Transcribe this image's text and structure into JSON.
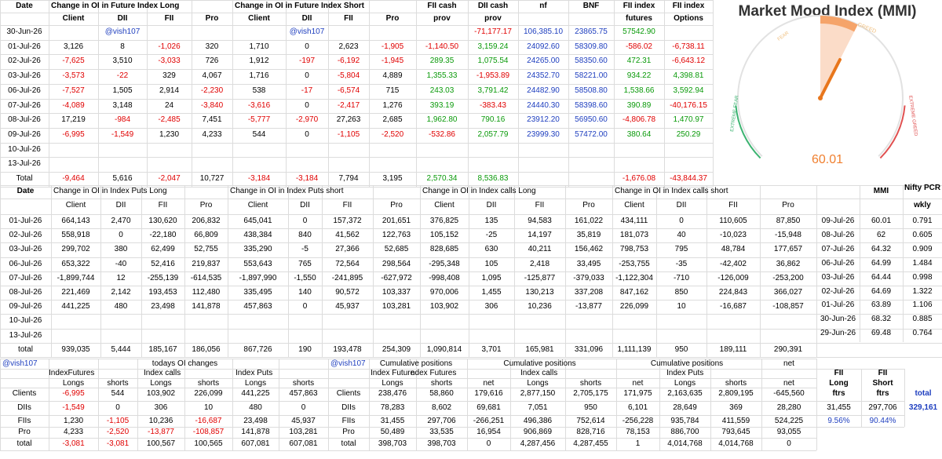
{
  "future_oi": {
    "header_row1": [
      "Date",
      "Change in OI in Future Index Long",
      null,
      null,
      null,
      "Change in OI in Future Index Short",
      null,
      null,
      null,
      "FII cash",
      "DII cash",
      "nf",
      "BNF",
      "FII index",
      "FII index"
    ],
    "header_row2": [
      null,
      "Client",
      "DII",
      "FII",
      "Pro",
      "Client",
      "DII",
      "FII",
      "Pro",
      "prov",
      "prov",
      null,
      null,
      "futures",
      "Options"
    ],
    "rows": [
      [
        "30-Jun-26",
        null,
        "@vish107",
        null,
        null,
        null,
        "@vish107",
        null,
        null,
        null,
        "-71,177.17",
        "106,385.10",
        "23865.75",
        "57542.90"
      ],
      [
        "01-Jul-26",
        "3,126",
        "8",
        "-1,026",
        "320",
        "1,710",
        "0",
        "2,623",
        "-1,905",
        "-1,140.50",
        "3,159.24",
        "24092.60",
        "58309.80",
        "-586.02",
        "-6,738.11"
      ],
      [
        "02-Jul-26",
        "-7,625",
        "3,510",
        "-3,033",
        "726",
        "1,912",
        "-197",
        "-6,192",
        "-1,945",
        "289.35",
        "1,075.54",
        "24265.00",
        "58350.60",
        "472.31",
        "-6,643.12"
      ],
      [
        "03-Jul-26",
        "-3,573",
        "-22",
        "329",
        "4,067",
        "1,716",
        "0",
        "-5,804",
        "4,889",
        "1,355.33",
        "-1,953.89",
        "24352.70",
        "58221.00",
        "934.22",
        "4,398.81"
      ],
      [
        "06-Jul-26",
        "-7,527",
        "1,505",
        "2,914",
        "-2,230",
        "538",
        "-17",
        "-6,574",
        "715",
        "243.03",
        "3,791.42",
        "24482.90",
        "58508.80",
        "1,538.66",
        "3,592.94"
      ],
      [
        "07-Jul-26",
        "-4,089",
        "3,148",
        "24",
        "-3,840",
        "-3,616",
        "0",
        "-2,417",
        "1,276",
        "393.19",
        "-383.43",
        "24440.30",
        "58398.60",
        "390.89",
        "-40,176.15"
      ],
      [
        "08-Jul-26",
        "17,219",
        "-984",
        "-2,485",
        "7,451",
        "-5,777",
        "-2,970",
        "27,263",
        "2,685",
        "1,962.80",
        "790.16",
        "23912.20",
        "56950.60",
        "-4,806.78",
        "1,470.97"
      ],
      [
        "09-Jul-26",
        "-6,995",
        "-1,549",
        "1,230",
        "4,233",
        "544",
        "0",
        "-1,105",
        "-2,520",
        "-532.86",
        "2,057.79",
        "23999.30",
        "57472.00",
        "380.64",
        "250.29"
      ],
      [
        "10-Jul-26"
      ],
      [
        "13-Jul-26"
      ],
      [
        "Total",
        "-9,464",
        "5,616",
        "-2,047",
        "10,727",
        "-3,184",
        "-3,184",
        "7,794",
        "3,195",
        "2,570.34",
        "8,536.83",
        null,
        null,
        "-1,676.08",
        "-43,844.37"
      ]
    ]
  },
  "mmi_gauge": {
    "title": "Market Mood Index (MMI)",
    "fear": "FEAR",
    "greed": "GREED",
    "extreme_fear": "EXTREME FEAR",
    "extreme_greed": "EXTREME GREED",
    "value": "60.01"
  },
  "options_oi": {
    "header_row1": [
      "Date",
      "Change in OI in Index Puts Long",
      null,
      null,
      null,
      "Change in OI in Index Puts short",
      null,
      null,
      null,
      "Change in OI in Index calls Long",
      null,
      null,
      null,
      "Change in OI in Index calls short"
    ],
    "header_row2": [
      null,
      "Client",
      "DII",
      "FII",
      "Pro",
      "Client",
      "DII",
      "FII",
      "Pro",
      "Client",
      "DII",
      "FII",
      "Pro",
      "Client",
      "DII",
      "FII",
      "Pro"
    ],
    "rows": [
      [
        "01-Jul-26",
        "664,143",
        "2,470",
        "130,620",
        "206,832",
        "645,041",
        "0",
        "157,372",
        "201,651",
        "376,825",
        "135",
        "94,583",
        "161,022",
        "434,111",
        "0",
        "110,605",
        "87,850"
      ],
      [
        "02-Jul-26",
        "558,918",
        "0",
        "-22,180",
        "66,809",
        "438,384",
        "840",
        "41,562",
        "122,763",
        "105,152",
        "-25",
        "14,197",
        "35,819",
        "181,073",
        "40",
        "-10,023",
        "-15,948"
      ],
      [
        "03-Jul-26",
        "299,702",
        "380",
        "62,499",
        "52,755",
        "335,290",
        "-5",
        "27,366",
        "52,685",
        "828,685",
        "630",
        "40,211",
        "156,462",
        "798,753",
        "795",
        "48,784",
        "177,657"
      ],
      [
        "06-Jul-26",
        "653,322",
        "-40",
        "52,416",
        "219,837",
        "553,643",
        "765",
        "72,564",
        "298,564",
        "-295,348",
        "105",
        "2,418",
        "33,495",
        "-253,755",
        "-35",
        "-42,402",
        "36,862"
      ],
      [
        "07-Jul-26",
        "-1,899,744",
        "12",
        "-255,139",
        "-614,535",
        "-1,897,990",
        "-1,550",
        "-241,895",
        "-627,972",
        "-998,408",
        "1,095",
        "-125,877",
        "-379,033",
        "-1,122,304",
        "-710",
        "-126,009",
        "-253,200"
      ],
      [
        "08-Jul-26",
        "221,469",
        "2,142",
        "193,453",
        "112,480",
        "335,495",
        "140",
        "90,572",
        "103,337",
        "970,006",
        "1,455",
        "130,213",
        "337,208",
        "847,162",
        "850",
        "224,843",
        "366,027"
      ],
      [
        "09-Jul-26",
        "441,225",
        "480",
        "23,498",
        "141,878",
        "457,863",
        "0",
        "45,937",
        "103,281",
        "103,902",
        "306",
        "10,236",
        "-13,877",
        "226,099",
        "10",
        "-16,687",
        "-108,857"
      ],
      [
        "10-Jul-26"
      ],
      [
        "13-Jul-26"
      ],
      [
        "total",
        "939,035",
        "5,444",
        "185,167",
        "186,056",
        "867,726",
        "190",
        "193,478",
        "254,309",
        "1,090,814",
        "3,701",
        "165,981",
        "331,096",
        "1,111,139",
        "950",
        "189,111",
        "290,391"
      ]
    ]
  },
  "mmi_table": {
    "header": [
      "MMI",
      "Nifty PCR"
    ],
    "subheader": "wkly",
    "rows": [
      [
        "09-Jul-26",
        "60.01",
        "0.791"
      ],
      [
        "08-Jul-26",
        "62",
        "0.605"
      ],
      [
        "07-Jul-26",
        "64.32",
        "0.909"
      ],
      [
        "06-Jul-26",
        "64.99",
        "1.484"
      ],
      [
        "03-Jul-26",
        "64.44",
        "0.998"
      ],
      [
        "02-Jul-26",
        "64.69",
        "1.322"
      ],
      [
        "01-Jul-26",
        "63.89",
        "1.106"
      ],
      [
        "30-Jun-26",
        "68.32",
        "0.885"
      ],
      [
        "29-Jun-26",
        "69.48",
        "0.764"
      ]
    ]
  },
  "positions": {
    "tag_left": "@vish107",
    "todays_title": "todays OI changes",
    "tag_right": "@vish107",
    "cumulative_titles": [
      "Cumulative positions",
      "Cumulative positions",
      "Cumulative positions"
    ],
    "net_title": "net",
    "groups": [
      "IndexFutures",
      "Index calls",
      "Index Puts",
      "Index Future",
      "ndex Futures",
      "Index calls",
      "Index Puts"
    ],
    "subheaders": [
      "Longs",
      "shorts",
      "Longs",
      "shorts",
      "Longs",
      "shorts",
      "Longs",
      "shorts",
      "net",
      "Longs",
      "shorts",
      "net",
      "Longs",
      "shorts",
      "net"
    ],
    "rows": [
      [
        "Clients",
        "-6,995",
        "544",
        "103,902",
        "226,099",
        "441,225",
        "457,863",
        "Clients",
        "238,476",
        "58,860",
        "179,616",
        "2,877,150",
        "2,705,175",
        "171,975",
        "2,163,635",
        "2,809,195",
        "-645,560"
      ],
      [
        "DIIs",
        "-1,549",
        "0",
        "306",
        "10",
        "480",
        "0",
        "DIIs",
        "78,283",
        "8,602",
        "69,681",
        "7,051",
        "950",
        "6,101",
        "28,649",
        "369",
        "28,280"
      ],
      [
        "FIIs",
        "1,230",
        "-1,105",
        "10,236",
        "-16,687",
        "23,498",
        "45,937",
        "FIIs",
        "31,455",
        "297,706",
        "-266,251",
        "496,386",
        "752,614",
        "-256,228",
        "935,784",
        "411,559",
        "524,225"
      ],
      [
        "Pro",
        "4,233",
        "-2,520",
        "-13,877",
        "-108,857",
        "141,878",
        "103,281",
        "Pro",
        "50,489",
        "33,535",
        "16,954",
        "906,869",
        "828,716",
        "78,153",
        "886,700",
        "793,645",
        "93,055"
      ],
      [
        "total",
        "-3,081",
        "-3,081",
        "100,567",
        "100,565",
        "607,081",
        "607,081",
        "total",
        "398,703",
        "398,703",
        "0",
        "4,287,456",
        "4,287,455",
        "1",
        "4,014,768",
        "4,014,768",
        "0"
      ]
    ]
  },
  "fii_box": {
    "long_header": [
      "FII",
      "Long",
      "ftrs"
    ],
    "short_header": [
      "FII",
      "Short",
      "ftrs"
    ],
    "total_label": "total",
    "long": "31,455",
    "short": "297,706",
    "total": "329,161",
    "long_pct": "9.56%",
    "short_pct": "90.44%"
  }
}
